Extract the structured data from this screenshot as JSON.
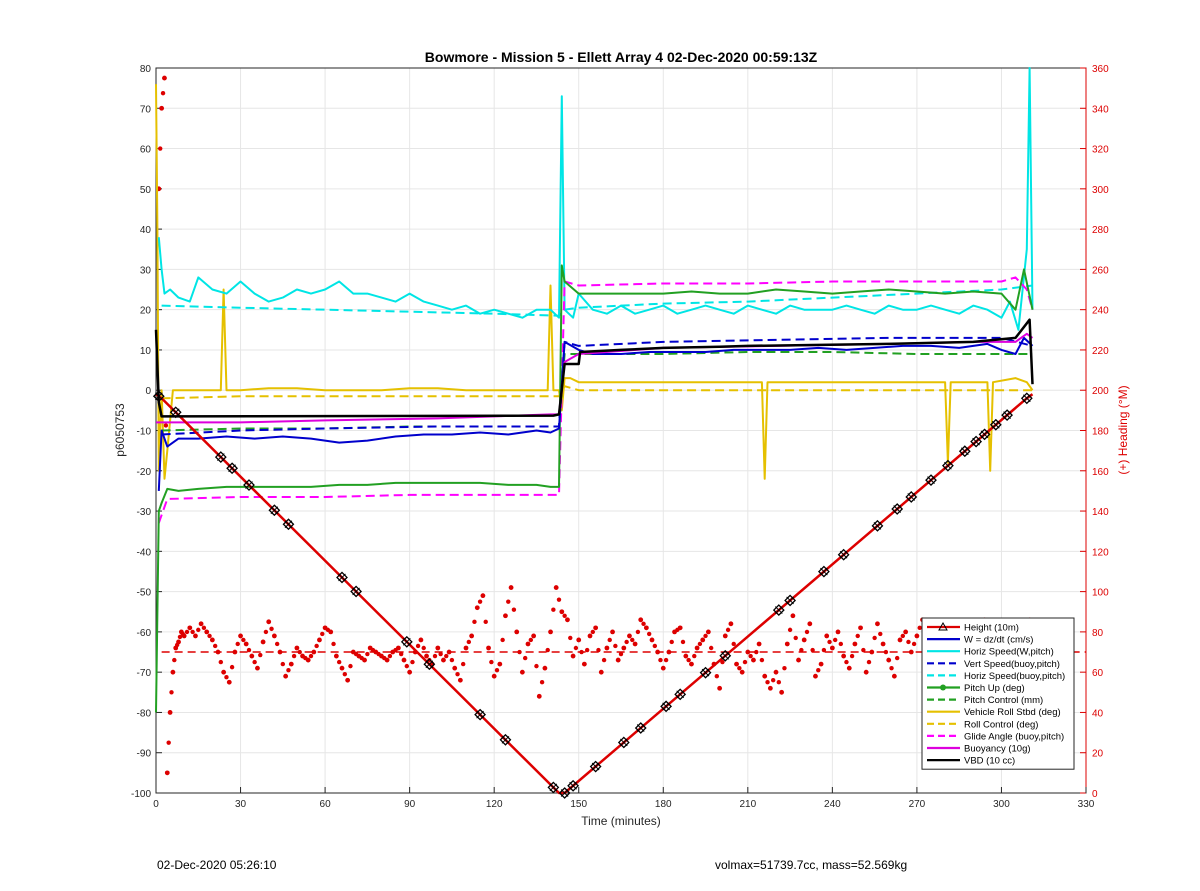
{
  "chart_data": {
    "type": "line",
    "title": "Bowmore - Mission 5 - Ellett Array 4 02-Dec-2020 00:59:13Z",
    "xlabel": "Time (minutes)",
    "ylabel": "p6050753",
    "y2label": "(+) Heading (°M)",
    "xlim": [
      0,
      330
    ],
    "ylim": [
      -100,
      80
    ],
    "y2lim": [
      0,
      360
    ],
    "xticks": [
      0,
      30,
      60,
      90,
      120,
      150,
      180,
      210,
      240,
      270,
      300,
      330
    ],
    "yticks": [
      80,
      70,
      60,
      50,
      40,
      30,
      20,
      10,
      0,
      -10,
      -20,
      -30,
      -40,
      -50,
      -60,
      -70,
      -80,
      -90,
      -100
    ],
    "y2ticks": [
      0,
      20,
      40,
      60,
      80,
      100,
      120,
      140,
      160,
      180,
      200,
      220,
      240,
      260,
      280,
      300,
      320,
      340,
      360
    ],
    "grid": true,
    "legend_position": "bottom-right",
    "legend": [
      {
        "name": "Height (10m)",
        "color": "#dd0000",
        "style": "solid",
        "marker": "triangle"
      },
      {
        "name": "W = dz/dt (cm/s)",
        "color": "#0000cc",
        "style": "solid"
      },
      {
        "name": "Horiz Speed(W,pitch)",
        "color": "#00e5e5",
        "style": "solid"
      },
      {
        "name": "Vert Speed(buoy,pitch)",
        "color": "#0000cc",
        "style": "dashed"
      },
      {
        "name": "Horiz Speed(buoy,pitch)",
        "color": "#00e5e5",
        "style": "dashed"
      },
      {
        "name": "Pitch Up (deg)",
        "color": "#22a022",
        "style": "solid",
        "marker": "circle"
      },
      {
        "name": "Pitch Control (mm)",
        "color": "#22a022",
        "style": "dashed"
      },
      {
        "name": "Vehicle Roll Stbd (deg)",
        "color": "#e5c000",
        "style": "solid"
      },
      {
        "name": "Roll Control (deg)",
        "color": "#e5c000",
        "style": "dashed"
      },
      {
        "name": "Glide Angle (buoy,pitch)",
        "color": "#ff00ff",
        "style": "dashed"
      },
      {
        "name": "Buoyancy (10g)",
        "color": "#dd00dd",
        "style": "solid"
      },
      {
        "name": "VBD (10 cc)",
        "color": "#000000",
        "style": "solid"
      }
    ],
    "series": [
      {
        "name": "Height (10m)",
        "color": "#dd0000",
        "x": [
          0,
          2,
          143,
          145,
          309,
          311
        ],
        "y": [
          -1,
          -2,
          -100,
          -100,
          -2,
          -1
        ]
      },
      {
        "name": "VBD (10 cc)",
        "color": "#000000",
        "x": [
          0,
          1,
          2,
          141,
          143,
          145,
          150,
          150.5,
          165,
          180,
          200,
          210,
          230,
          260,
          290,
          305,
          310,
          311
        ],
        "y": [
          15,
          -3,
          -6.5,
          -6.3,
          -6,
          6.5,
          6.5,
          9.5,
          10,
          10.5,
          10.8,
          11,
          11.2,
          11.5,
          12,
          13,
          17.5,
          1.5
        ]
      },
      {
        "name": "Buoyancy (10g)",
        "color": "#dd00dd",
        "x": [
          0,
          2,
          30,
          60,
          100,
          140,
          143,
          145,
          150,
          180,
          220,
          260,
          290,
          305,
          309,
          311
        ],
        "y": [
          -8,
          -8,
          -8,
          -7.5,
          -7,
          -6,
          -6,
          7,
          9,
          10.5,
          11,
          11.5,
          12,
          12,
          14,
          13
        ]
      },
      {
        "name": "W = dz/dt (cm/s)",
        "color": "#0000cc",
        "x": [
          1,
          2,
          4,
          8,
          15,
          25,
          35,
          45,
          55,
          65,
          75,
          85,
          95,
          105,
          115,
          125,
          135,
          140,
          143,
          145,
          150,
          155,
          165,
          175,
          185,
          195,
          205,
          215,
          225,
          235,
          245,
          255,
          265,
          275,
          285,
          295,
          300,
          305,
          308,
          311
        ],
        "y": [
          -25,
          -10,
          -14,
          -12,
          -12,
          -11.5,
          -12,
          -11.5,
          -12,
          -13,
          -12.5,
          -11.5,
          -11,
          -11,
          -10.5,
          -11,
          -10,
          -10.5,
          -9.5,
          12,
          10,
          9,
          9,
          9.5,
          9.5,
          9.5,
          10,
          10,
          10,
          10.5,
          10,
          10.5,
          11,
          11,
          10.5,
          11.5,
          10,
          9,
          13,
          11
        ]
      },
      {
        "name": "Vert Speed(buoy,pitch)",
        "color": "#0000cc",
        "dashed": true,
        "x": [
          2,
          30,
          60,
          100,
          140,
          143,
          145,
          150,
          180,
          220,
          260,
          300,
          311
        ],
        "y": [
          -11,
          -10,
          -9.5,
          -9,
          -9,
          -9,
          12,
          11,
          12,
          12.5,
          13,
          13,
          11
        ]
      },
      {
        "name": "Horiz Speed(W,pitch)",
        "color": "#00e5e5",
        "x": [
          1,
          2,
          3,
          5,
          8,
          12,
          15,
          20,
          25,
          30,
          35,
          40,
          45,
          50,
          55,
          60,
          65,
          70,
          75,
          80,
          85,
          90,
          95,
          100,
          105,
          110,
          115,
          120,
          125,
          130,
          135,
          140,
          143,
          144,
          145,
          148,
          150,
          155,
          160,
          165,
          170,
          175,
          180,
          185,
          190,
          195,
          200,
          205,
          210,
          215,
          220,
          225,
          230,
          235,
          240,
          245,
          250,
          255,
          260,
          265,
          270,
          275,
          280,
          285,
          290,
          295,
          300,
          303,
          306,
          309,
          310,
          311
        ],
        "y": [
          38,
          30,
          24,
          25,
          23,
          22,
          28,
          25,
          24,
          27,
          24,
          22,
          23,
          25,
          24,
          25,
          27,
          24,
          24,
          23,
          22,
          24,
          22,
          21,
          20,
          21,
          19,
          20,
          19,
          18,
          20,
          20,
          18,
          73,
          20,
          18,
          24,
          20,
          19,
          21,
          19,
          20,
          21,
          19,
          20,
          21,
          20,
          19,
          21,
          20,
          19,
          21,
          20,
          20,
          20,
          21,
          20,
          19,
          21,
          20,
          20,
          21,
          20,
          19,
          21,
          20,
          18,
          22,
          15,
          35,
          80,
          20
        ]
      },
      {
        "name": "Horiz Speed(buoy,pitch)",
        "color": "#00e5e5",
        "dashed": true,
        "x": [
          2,
          30,
          60,
          90,
          120,
          143,
          145,
          150,
          180,
          210,
          240,
          270,
          300,
          311
        ],
        "y": [
          21,
          20.5,
          20,
          19.5,
          19,
          18.5,
          20,
          20.5,
          21.5,
          22,
          23,
          24,
          25,
          26
        ]
      },
      {
        "name": "Pitch Up (deg)",
        "color": "#22a022",
        "x": [
          0,
          1,
          2,
          4,
          8,
          15,
          25,
          35,
          45,
          55,
          65,
          75,
          85,
          95,
          105,
          115,
          125,
          135,
          140,
          143,
          144,
          145,
          150,
          160,
          170,
          180,
          190,
          200,
          210,
          220,
          230,
          240,
          250,
          260,
          270,
          280,
          290,
          300,
          305,
          308,
          311
        ],
        "y": [
          -80,
          -30,
          -28,
          -24.5,
          -25,
          -24.5,
          -24,
          -24,
          -24,
          -24,
          -23.5,
          -23.5,
          -23,
          -23,
          -23,
          -23,
          -23.5,
          -23.5,
          -24,
          -24,
          31,
          27,
          24,
          24,
          24,
          24,
          24.5,
          24,
          24,
          25,
          24.5,
          24,
          24.5,
          25,
          24.5,
          24,
          24.5,
          24,
          20,
          30,
          20
        ]
      },
      {
        "name": "Pitch Control (mm)",
        "color": "#22a022",
        "dashed": true,
        "x": [
          2,
          30,
          60,
          90,
          120,
          143,
          145,
          150,
          180,
          210,
          240,
          270,
          300,
          311
        ],
        "y": [
          -10,
          -9.5,
          -9.5,
          -9,
          -9,
          -9,
          9,
          9,
          9,
          9.5,
          9.5,
          9,
          9,
          9
        ]
      },
      {
        "name": "Glide Angle (buoy,pitch)",
        "color": "#ff00ff",
        "dashed": true,
        "x": [
          1,
          2,
          4,
          30,
          60,
          90,
          120,
          143,
          145,
          150,
          180,
          210,
          240,
          270,
          300,
          305,
          309,
          311
        ],
        "y": [
          -33,
          -31,
          -27,
          -26.5,
          -26.5,
          -26,
          -26,
          -26,
          27,
          26,
          26.5,
          26.5,
          27,
          27,
          27,
          28,
          25,
          20
        ]
      },
      {
        "name": "Vehicle Roll Stbd (deg)",
        "color": "#e5c000",
        "x": [
          0,
          0.5,
          1,
          2,
          3,
          4,
          6,
          10,
          15,
          23,
          24,
          25,
          30,
          40,
          50,
          60,
          70,
          80,
          90,
          100,
          110,
          120,
          130,
          139,
          140,
          141,
          143,
          144,
          145,
          147,
          150,
          155,
          160,
          170,
          180,
          190,
          200,
          210,
          215,
          216,
          217,
          230,
          240,
          250,
          260,
          270,
          280,
          281,
          282,
          290,
          295,
          296,
          297,
          305,
          309,
          311
        ],
        "y": [
          76,
          40,
          -20,
          0,
          -22,
          -15,
          0,
          0,
          0,
          0,
          25,
          0,
          0,
          0.5,
          0.5,
          0,
          0,
          0,
          0.5,
          0.5,
          0,
          0,
          0,
          0,
          26,
          0,
          0,
          -5,
          3,
          3,
          2,
          2,
          2,
          2,
          2,
          2,
          2,
          2,
          2,
          -22,
          2,
          2,
          2,
          2,
          2,
          2,
          2,
          -18,
          2,
          2,
          2,
          -20,
          2,
          3,
          2,
          0
        ]
      },
      {
        "name": "Roll Control (deg)",
        "color": "#e5c000",
        "dashed": true,
        "x": [
          2,
          30,
          60,
          90,
          120,
          140,
          143,
          145,
          150,
          180,
          210,
          240,
          270,
          300,
          311
        ],
        "y": [
          -2,
          -1.5,
          -1.5,
          -1.5,
          -1.5,
          -1.5,
          -1.5,
          1,
          0,
          0,
          0,
          0,
          0,
          0,
          0
        ]
      }
    ],
    "heading_series": {
      "name": "(+) Heading (°M)",
      "color": "#dd0000",
      "axis": "right",
      "x": [
        1,
        2,
        3,
        4,
        5,
        6,
        7,
        8,
        9,
        10,
        12,
        14,
        16,
        18,
        20,
        22,
        24,
        26,
        28,
        30,
        32,
        34,
        36,
        38,
        40,
        42,
        44,
        46,
        48,
        50,
        52,
        54,
        56,
        58,
        60,
        62,
        64,
        66,
        68,
        70,
        72,
        74,
        76,
        78,
        80,
        82,
        84,
        86,
        88,
        90,
        92,
        94,
        96,
        98,
        100,
        102,
        104,
        106,
        108,
        110,
        112,
        114,
        116,
        118,
        120,
        122,
        124,
        126,
        128,
        130,
        132,
        134,
        136,
        138,
        140,
        142,
        144,
        146,
        148,
        150,
        152,
        154,
        156,
        158,
        160,
        162,
        164,
        166,
        168,
        170,
        172,
        174,
        176,
        178,
        180,
        182,
        184,
        186,
        188,
        190,
        192,
        194,
        196,
        198,
        200,
        202,
        204,
        206,
        208,
        210,
        212,
        214,
        216,
        218,
        220,
        222,
        224,
        226,
        228,
        230,
        232,
        234,
        236,
        238,
        240,
        242,
        244,
        246,
        248,
        250,
        252,
        254,
        256,
        258,
        260,
        262,
        264,
        266,
        268,
        270,
        272,
        274,
        276,
        278,
        280,
        282,
        284,
        286,
        288,
        290,
        292,
        294,
        296,
        298,
        300,
        302,
        304,
        306,
        308,
        310
      ],
      "y": [
        300,
        340,
        355,
        10,
        40,
        60,
        72,
        75,
        80,
        78,
        82,
        78,
        84,
        80,
        76,
        70,
        60,
        55,
        70,
        78,
        74,
        68,
        62,
        75,
        85,
        78,
        70,
        58,
        64,
        72,
        68,
        66,
        70,
        76,
        82,
        80,
        68,
        62,
        56,
        70,
        68,
        66,
        72,
        70,
        68,
        66,
        70,
        72,
        66,
        60,
        70,
        76,
        68,
        64,
        72,
        66,
        70,
        62,
        56,
        72,
        78,
        92,
        98,
        72,
        58,
        64,
        88,
        102,
        80,
        60,
        74,
        78,
        48,
        62,
        80,
        102,
        90,
        86,
        68,
        76,
        64,
        78,
        82,
        60,
        72,
        80,
        66,
        72,
        78,
        74,
        86,
        82,
        76,
        70,
        62,
        70,
        80,
        82,
        68,
        64,
        72,
        76,
        80,
        64,
        52,
        78,
        84,
        64,
        60,
        70,
        66,
        74,
        58,
        52,
        60,
        50,
        74,
        88,
        66,
        76,
        84,
        58,
        64,
        78,
        72,
        80,
        68,
        62,
        74,
        82,
        60,
        70,
        84,
        74,
        66,
        58,
        76,
        80,
        70,
        78,
        86,
        64,
        74,
        80,
        70,
        66,
        76,
        84,
        72,
        64,
        82,
        86,
        70,
        76,
        78,
        72,
        80,
        74,
        82,
        86
      ],
      "mean_line": 70
    },
    "height_markers_x": [
      1,
      7,
      23,
      27,
      33,
      42,
      47,
      66,
      71,
      89,
      97,
      115,
      124,
      141,
      145,
      148,
      156,
      166,
      172,
      181,
      186,
      195,
      202,
      221,
      225,
      237,
      244,
      256,
      263,
      268,
      275,
      281,
      287,
      291,
      294,
      298,
      302,
      309
    ]
  },
  "footer": {
    "left": "02-Dec-2020 05:26:10",
    "right": "volmax=51739.7cc, mass=52.569kg"
  }
}
